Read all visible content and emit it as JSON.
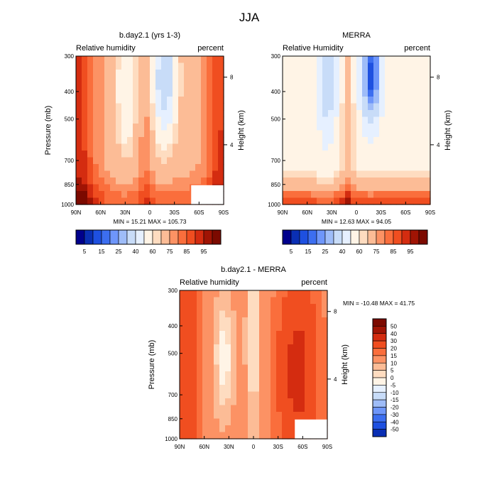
{
  "chart_data": {
    "type": "heatmap",
    "title": "JJA",
    "panels": [
      {
        "id": "model",
        "title": "b.day2.1 (yrs 1-3)",
        "left_label": "Relative humidity",
        "right_label": "percent",
        "ylabel": "Pressure (mb)",
        "ylabel_right": "Height (km)",
        "yticks": [
          "300",
          "400",
          "500",
          "700",
          "850",
          "1000"
        ],
        "height_ticks": [
          "8",
          "4"
        ],
        "xticks": [
          "90N",
          "60N",
          "30N",
          "0",
          "30S",
          "60S",
          "90S"
        ],
        "stats": "MIN =  15.21  MAX = 105.73",
        "min": 15.21,
        "max": 105.73,
        "scale": "rh"
      },
      {
        "id": "obs",
        "title": "MERRA",
        "left_label": "Relative Humidity",
        "right_label": "percent",
        "ylabel": "",
        "ylabel_right": "Height (km)",
        "yticks": [
          "300",
          "400",
          "500",
          "700",
          "850",
          "1000"
        ],
        "height_ticks": [
          "8",
          "4"
        ],
        "xticks": [
          "90N",
          "60N",
          "30N",
          "0",
          "30S",
          "60S",
          "90S"
        ],
        "stats": "MIN =  12.63  MAX =  94.05",
        "min": 12.63,
        "max": 94.05,
        "scale": "rh"
      },
      {
        "id": "diff",
        "title": "b.day2.1 - MERRA",
        "left_label": "Relative humidity",
        "right_label": "percent",
        "ylabel": "Pressure (mb)",
        "ylabel_right": "Height (km)",
        "yticks": [
          "300",
          "400",
          "500",
          "700",
          "850",
          "1000"
        ],
        "height_ticks": [
          "8",
          "4"
        ],
        "xticks": [
          "90N",
          "60N",
          "30N",
          "0",
          "30S",
          "60S",
          "90S"
        ],
        "stats": "MIN = -10.48  MAX =  41.75",
        "min": -10.48,
        "max": 41.75,
        "scale": "diff"
      }
    ],
    "colorbar_rh": {
      "levels": [
        "5",
        "15",
        "25",
        "40",
        "60",
        "75",
        "85",
        "95"
      ],
      "colors": [
        "#00008c",
        "#0a2fb4",
        "#1e50e0",
        "#3c6ef0",
        "#6e96fa",
        "#9ebcf8",
        "#c8dcf8",
        "#e6f0ff",
        "#fff4e6",
        "#fedcc0",
        "#fcbc96",
        "#fc9264",
        "#fa6e3c",
        "#f04e20",
        "#d42c10",
        "#a01404",
        "#7c0a00"
      ]
    },
    "colorbar_diff": {
      "levels": [
        "50",
        "40",
        "30",
        "20",
        "15",
        "10",
        "5",
        "0",
        "-5",
        "-10",
        "-15",
        "-20",
        "-30",
        "-40",
        "-50"
      ],
      "colors": [
        "#7c0a00",
        "#a01404",
        "#d42c10",
        "#f04e20",
        "#fa6e3c",
        "#fc9264",
        "#fcbc96",
        "#fedcc0",
        "#fff4e6",
        "#e6f0ff",
        "#c8dcf8",
        "#9ebcf8",
        "#6e96fa",
        "#3c6ef0",
        "#1e50e0",
        "#0a2fb4"
      ]
    }
  }
}
